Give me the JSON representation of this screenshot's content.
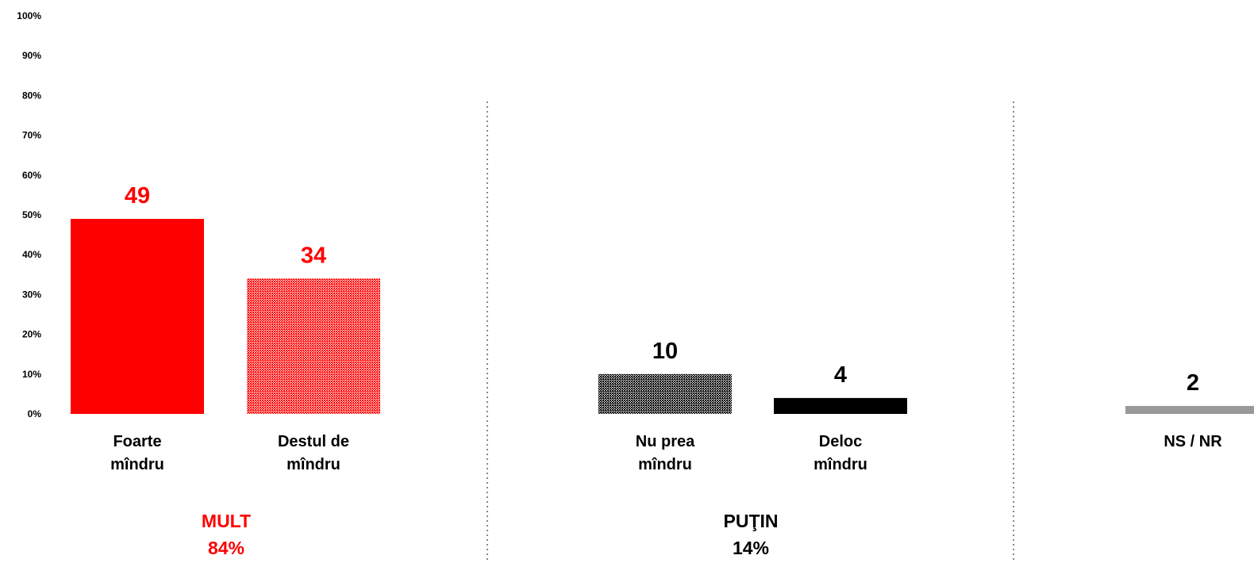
{
  "chart_data": {
    "type": "bar",
    "ylim": [
      0,
      100
    ],
    "yticks": [
      0,
      10,
      20,
      30,
      40,
      50,
      60,
      70,
      80,
      90,
      100
    ],
    "ytick_suffix": "%",
    "grid": false,
    "legend": false,
    "categories": [
      {
        "label": [
          "Foarte",
          "mîndru"
        ],
        "value": 49,
        "color": "#ff0000",
        "pattern": "solid",
        "label_color": "#ff0000"
      },
      {
        "label": [
          "Destul de",
          "mîndru"
        ],
        "value": 34,
        "color": "#ff0000",
        "pattern": "dotted",
        "label_color": "#ff0000"
      },
      {
        "label": [
          "Nu prea",
          "mîndru"
        ],
        "value": 10,
        "color": "#000000",
        "pattern": "dotted",
        "label_color": "#000000"
      },
      {
        "label": [
          "Deloc",
          "mîndru"
        ],
        "value": 4,
        "color": "#000000",
        "pattern": "solid",
        "label_color": "#000000"
      },
      {
        "label": [
          "NS / NR"
        ],
        "value": 2,
        "color": "#999999",
        "pattern": "solid",
        "label_color": "#000000"
      }
    ],
    "groups": [
      {
        "name": "MULT",
        "total": "84%",
        "color": "#ff0000"
      },
      {
        "name": "PUŢIN",
        "total": "14%",
        "color": "#000000"
      }
    ]
  }
}
